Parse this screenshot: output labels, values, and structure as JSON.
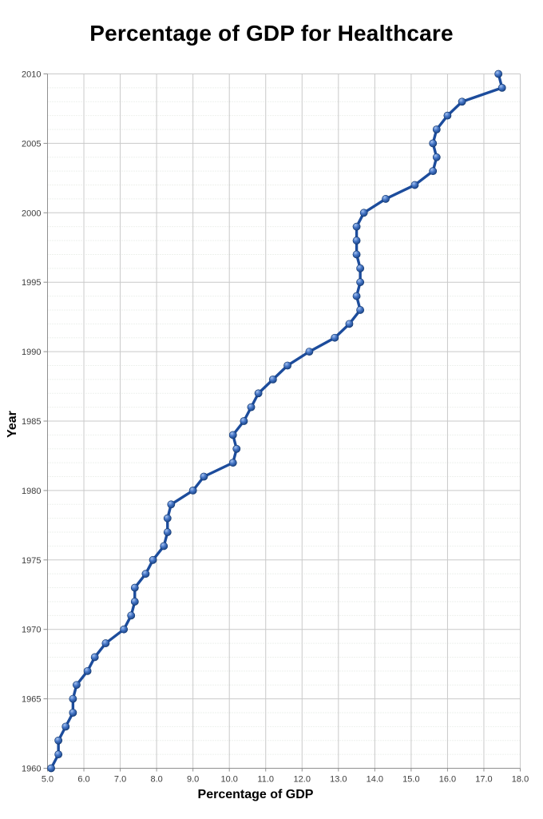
{
  "chart_data": {
    "type": "line",
    "title": "Percentage of GDP for Healthcare",
    "xlabel": "Percentage of GDP",
    "ylabel": "Year",
    "xlim": [
      5.0,
      18.0
    ],
    "year_range": [
      1960,
      2010
    ],
    "x_tick_labels": [
      "5.0",
      "6.0",
      "7.0",
      "8.0",
      "9.0",
      "10.0",
      "11.0",
      "12.0",
      "13.0",
      "14.0",
      "15.0",
      "16.0",
      "17.0",
      "18.0"
    ],
    "y_tick_labels": [
      "1960",
      "1965",
      "1970",
      "1975",
      "1980",
      "1985",
      "1990",
      "1995",
      "2000",
      "2005",
      "2010"
    ],
    "grid": "vertical-major-solid, horizontal-major-solid-5yr, horizontal-minor-dotted-1yr",
    "legend": "none",
    "series": [
      {
        "name": "Percentage of GDP",
        "years": [
          1960,
          1961,
          1962,
          1963,
          1964,
          1965,
          1966,
          1967,
          1968,
          1969,
          1970,
          1971,
          1972,
          1973,
          1974,
          1975,
          1976,
          1977,
          1978,
          1979,
          1980,
          1981,
          1982,
          1983,
          1984,
          1985,
          1986,
          1987,
          1988,
          1989,
          1990,
          1991,
          1992,
          1993,
          1994,
          1995,
          1996,
          1997,
          1998,
          1999,
          2000,
          2001,
          2002,
          2003,
          2004,
          2005,
          2006,
          2007,
          2008,
          2009,
          2010
        ],
        "values": [
          5.1,
          5.3,
          5.3,
          5.5,
          5.7,
          5.7,
          5.8,
          6.1,
          6.3,
          6.6,
          7.1,
          7.3,
          7.4,
          7.4,
          7.7,
          7.9,
          8.2,
          8.3,
          8.3,
          8.4,
          9.0,
          9.3,
          10.1,
          10.2,
          10.1,
          10.4,
          10.6,
          10.8,
          11.2,
          11.6,
          12.2,
          12.9,
          13.3,
          13.6,
          13.5,
          13.6,
          13.6,
          13.5,
          13.5,
          13.5,
          13.7,
          14.3,
          15.1,
          15.6,
          15.7,
          15.6,
          15.7,
          16.0,
          16.4,
          17.5,
          17.4
        ]
      }
    ],
    "colors": {
      "line": "#1c4c9c",
      "marker": "#3a6cc6",
      "marker_light": "#a8c4f0",
      "marker_dark": "#123c7e",
      "marker_outline": "#10356b",
      "grid_major": "#c9c9c9",
      "grid_minor": "#dce3db",
      "axis": "#8f8f8f",
      "tick_label": "#3d3d3d"
    }
  }
}
